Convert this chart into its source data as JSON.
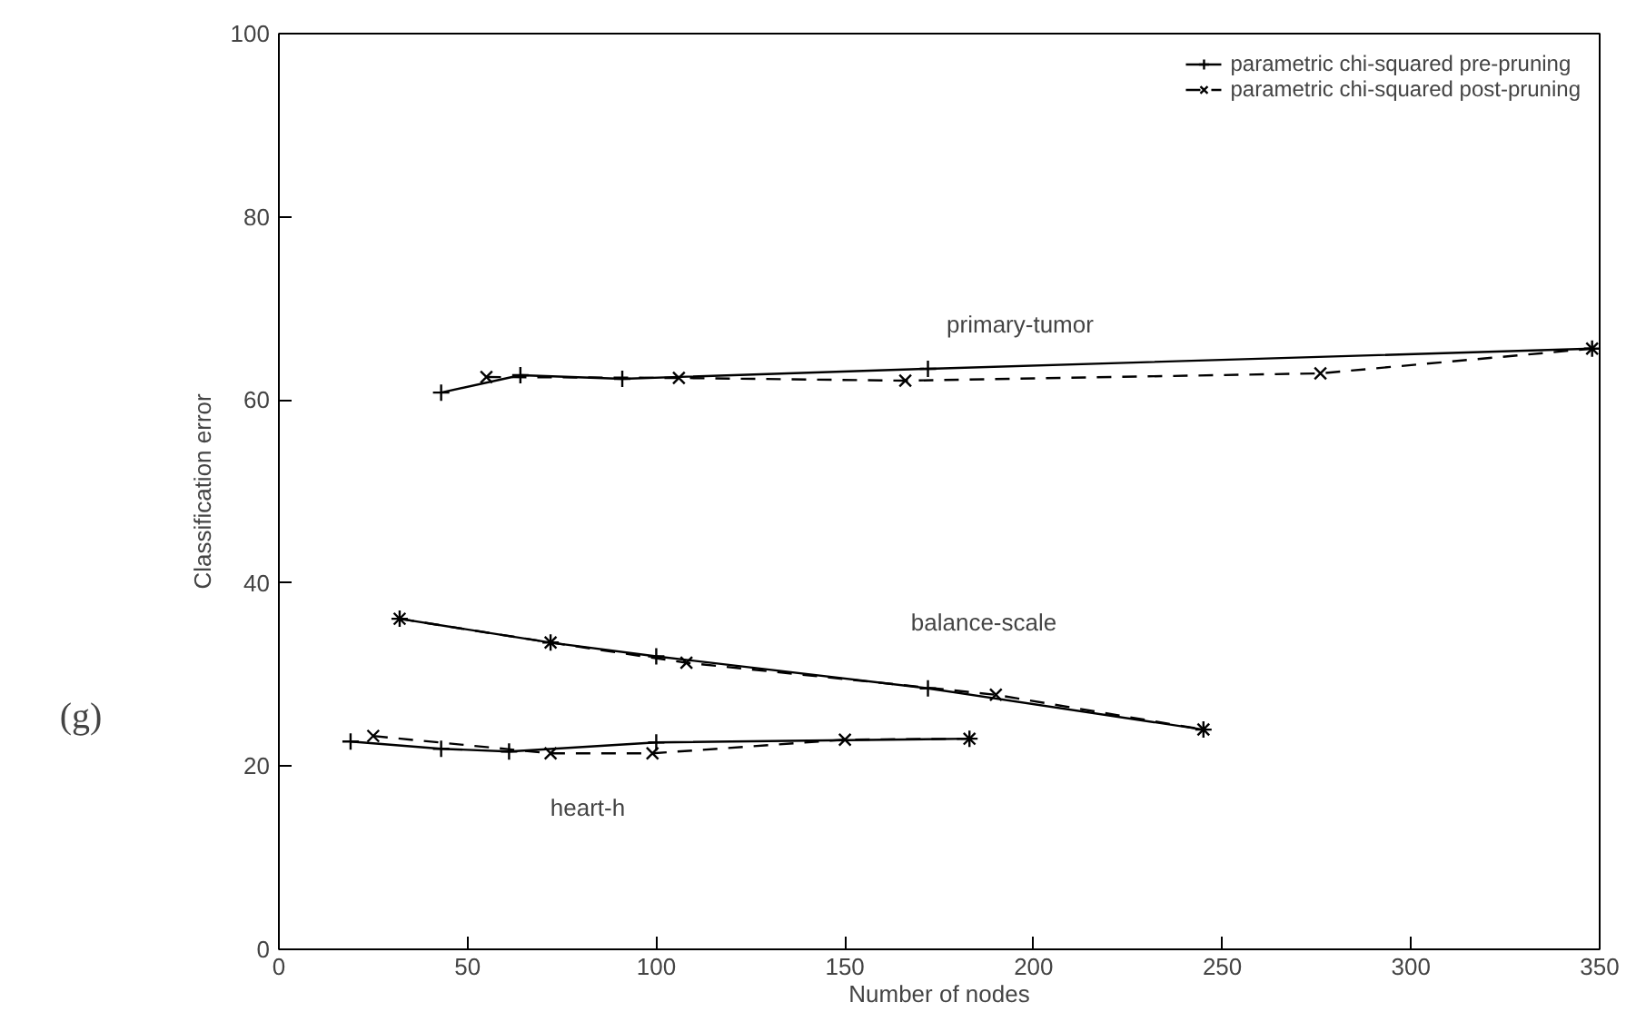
{
  "chart_data": {
    "type": "line",
    "xlabel": "Number of nodes",
    "ylabel": "Classification error",
    "xlim": [
      0,
      350
    ],
    "ylim": [
      0,
      100
    ],
    "xticks": [
      0,
      50,
      100,
      150,
      200,
      250,
      300,
      350
    ],
    "yticks": [
      0,
      20,
      40,
      60,
      80,
      100
    ],
    "grid": false,
    "legend": "top right",
    "series": [
      {
        "name": "parametric chi-squared pre-pruning",
        "color": "#000000",
        "marker": "cross",
        "line_style": "solid",
        "x": [
          43,
          64,
          91,
          172,
          348
        ],
        "values": [
          60.8,
          62.7,
          62.3,
          63.4,
          65.6
        ]
      },
      {
        "name": "parametric chi-squared post-pruning",
        "color": "#000000",
        "marker": "x",
        "line_style": "dashed",
        "x": [
          55,
          106,
          166,
          276,
          348
        ],
        "values": [
          62.5,
          62.4,
          62.1,
          62.9,
          65.6
        ]
      },
      {
        "color": "#000000",
        "marker": "cross",
        "line_style": "solid",
        "x": [
          32,
          72,
          100,
          172,
          245
        ],
        "values": [
          36.1,
          33.5,
          32.0,
          28.5,
          24.0
        ]
      },
      {
        "color": "#000000",
        "marker": "x",
        "line_style": "dashed",
        "x": [
          32,
          72,
          108,
          190,
          245
        ],
        "values": [
          36.1,
          33.5,
          31.3,
          27.8,
          24.0
        ]
      },
      {
        "color": "#000000",
        "marker": "cross",
        "line_style": "solid",
        "x": [
          19,
          43,
          61,
          100,
          183
        ],
        "values": [
          22.7,
          21.9,
          21.6,
          22.6,
          23.0
        ]
      },
      {
        "color": "#000000",
        "marker": "x",
        "line_style": "dashed",
        "x": [
          25,
          72,
          99,
          150,
          183
        ],
        "values": [
          23.3,
          21.4,
          21.4,
          22.9,
          23.0
        ]
      }
    ],
    "annotations": [
      "primary-tumor",
      "balance-scale",
      "heart-h",
      "(g)"
    ]
  }
}
